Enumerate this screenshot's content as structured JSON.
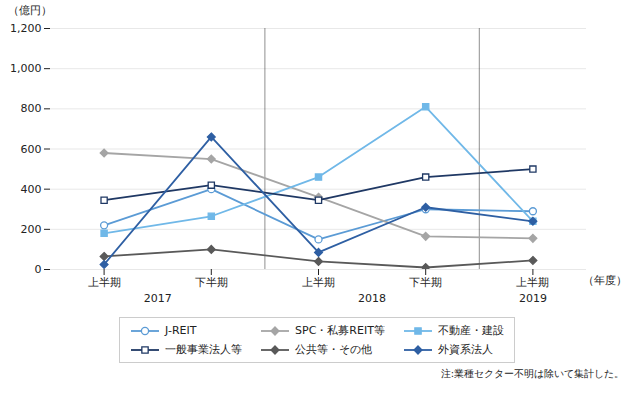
{
  "chart_data": {
    "type": "line",
    "categories": [
      "上半期",
      "下半期",
      "上半期",
      "下半期",
      "上半期"
    ],
    "category_groups": [
      "2017",
      "2017",
      "2018",
      "2018",
      "2019"
    ],
    "series": [
      {
        "name": "J-REIT",
        "color": "#5b9bd5",
        "marker": "circle-open",
        "line_style": "solid",
        "values": [
          220,
          400,
          150,
          300,
          290
        ]
      },
      {
        "name": "SPC・私募REIT等",
        "color": "#a5a5a5",
        "marker": "diamond",
        "line_style": "solid",
        "values": [
          580,
          550,
          360,
          165,
          155
        ]
      },
      {
        "name": "不動産・建設",
        "color": "#70b8e8",
        "marker": "square",
        "line_style": "solid",
        "values": [
          180,
          265,
          460,
          810,
          240
        ]
      },
      {
        "name": "一般事業法人等",
        "color": "#1f3864",
        "marker": "square-open",
        "line_style": "solid",
        "values": [
          345,
          420,
          345,
          460,
          500
        ]
      },
      {
        "name": "公共等・その他",
        "color": "#595959",
        "marker": "diamond",
        "line_style": "solid",
        "values": [
          65,
          100,
          40,
          10,
          45
        ]
      },
      {
        "name": "外資系法人",
        "color": "#2e5fa3",
        "marker": "diamond",
        "line_style": "solid",
        "values": [
          25,
          660,
          85,
          310,
          240
        ]
      }
    ],
    "ylabel": "（億円）",
    "xlabel": "（年度）",
    "note": "注:業種セクター不明は除いて集計した。",
    "ylim": [
      0,
      1200
    ],
    "yticks": [
      0,
      200,
      400,
      600,
      800,
      {
        "value": 1000,
        "label": "1,000"
      },
      {
        "value": 1200,
        "label": "1,200"
      }
    ],
    "grid": true,
    "legend": "bottom"
  }
}
